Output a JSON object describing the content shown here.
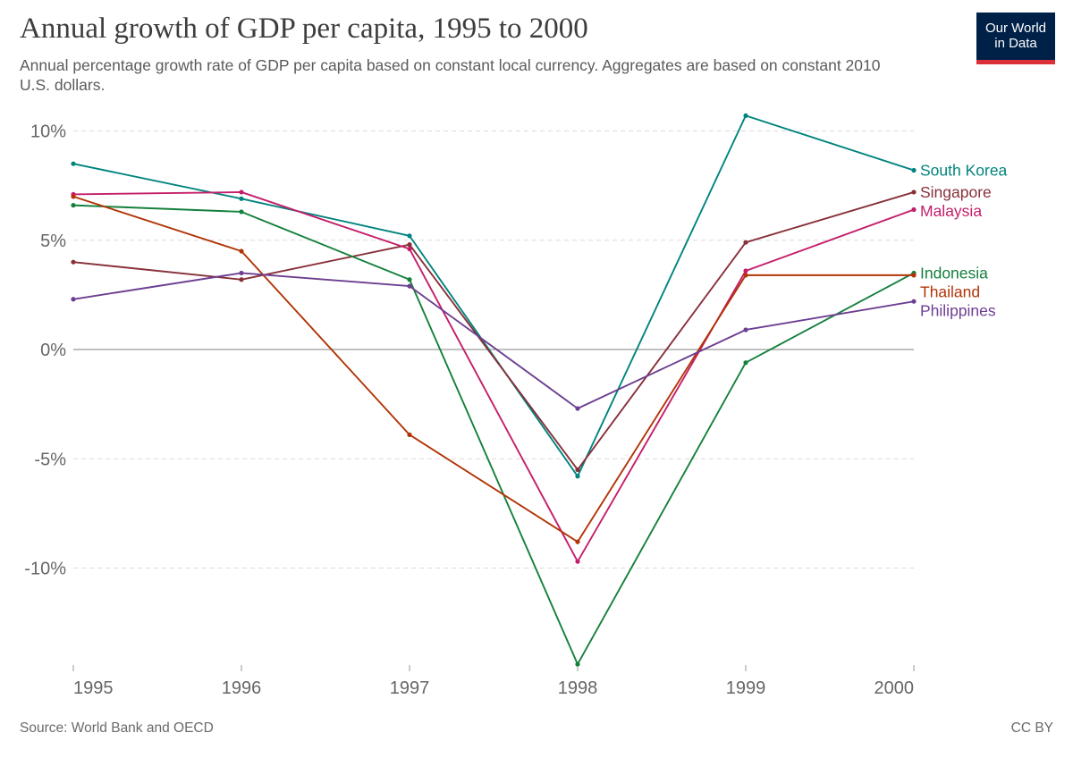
{
  "header": {
    "title": "Annual growth of GDP per capita, 1995 to 2000",
    "subtitle": "Annual percentage growth rate of GDP per capita based on constant local currency. Aggregates are based on constant 2010 U.S. dollars."
  },
  "logo": {
    "line1": "Our World",
    "line2": "in Data"
  },
  "footer": {
    "source": "Source: World Bank and OECD",
    "license": "CC BY"
  },
  "chart_data": {
    "type": "line",
    "title": "Annual growth of GDP per capita, 1995 to 2000",
    "xlabel": "",
    "ylabel": "",
    "x": [
      1995,
      1996,
      1997,
      1998,
      1999,
      2000
    ],
    "x_tick_labels": [
      "1995",
      "1996",
      "1997",
      "1998",
      "1999",
      "2000"
    ],
    "ylim": [
      -14.4,
      10.6
    ],
    "y_ticks": [
      10,
      5,
      0,
      -5,
      -10
    ],
    "y_tick_labels": [
      "10%",
      "5%",
      "0%",
      "-5%",
      "-10%"
    ],
    "grid": "horizontal dashed",
    "legend": "right, labels at line ends",
    "series": [
      {
        "name": "South Korea",
        "color": "#00847e",
        "values": [
          8.5,
          6.9,
          5.2,
          -5.8,
          10.7,
          8.2
        ]
      },
      {
        "name": "Singapore",
        "color": "#883039",
        "values": [
          4.0,
          3.2,
          4.8,
          -5.5,
          4.9,
          7.2
        ]
      },
      {
        "name": "Malaysia",
        "color": "#c41e6a",
        "values": [
          7.1,
          7.2,
          4.6,
          -9.7,
          3.6,
          6.4
        ]
      },
      {
        "name": "Indonesia",
        "color": "#15803d",
        "values": [
          6.6,
          6.3,
          3.2,
          -14.4,
          -0.6,
          3.5
        ]
      },
      {
        "name": "Thailand",
        "color": "#b13507",
        "values": [
          7.0,
          4.5,
          -3.9,
          -8.8,
          3.4,
          3.4
        ]
      },
      {
        "name": "Philippines",
        "color": "#6d3e91",
        "values": [
          2.3,
          3.5,
          2.9,
          -2.7,
          0.9,
          2.2
        ]
      }
    ]
  }
}
